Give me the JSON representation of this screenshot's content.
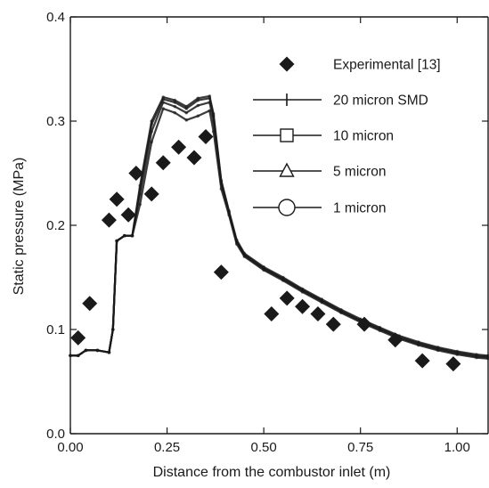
{
  "chart_data": {
    "type": "scatter",
    "title": "",
    "xlabel": "Distance from the combustor inlet (m)",
    "ylabel": "Static pressure (MPa)",
    "xlim": [
      0.0,
      1.08
    ],
    "ylim": [
      0.0,
      0.4
    ],
    "xticks": [
      0.0,
      0.25,
      0.5,
      0.75,
      1.0
    ],
    "xtick_labels": [
      "0.00",
      "0.25",
      "0.50",
      "0.75",
      "1.00"
    ],
    "yticks": [
      0.0,
      0.1,
      0.2,
      0.3,
      0.4
    ],
    "ytick_labels": [
      "0.0",
      "0.1",
      "0.2",
      "0.3",
      "0.4"
    ],
    "grid": false,
    "legend_position": "top-right",
    "series": [
      {
        "name": "Experimental [13]",
        "marker": "diamond",
        "color": "#1a1a1a",
        "points": [
          [
            0.02,
            0.092
          ],
          [
            0.05,
            0.125
          ],
          [
            0.1,
            0.205
          ],
          [
            0.12,
            0.225
          ],
          [
            0.15,
            0.21
          ],
          [
            0.17,
            0.25
          ],
          [
            0.21,
            0.23
          ],
          [
            0.24,
            0.26
          ],
          [
            0.28,
            0.275
          ],
          [
            0.32,
            0.265
          ],
          [
            0.35,
            0.285
          ],
          [
            0.39,
            0.155
          ],
          [
            0.52,
            0.115
          ],
          [
            0.56,
            0.13
          ],
          [
            0.6,
            0.122
          ],
          [
            0.64,
            0.115
          ],
          [
            0.68,
            0.105
          ],
          [
            0.76,
            0.105
          ],
          [
            0.84,
            0.09
          ],
          [
            0.91,
            0.07
          ],
          [
            0.99,
            0.067
          ]
        ]
      },
      {
        "name": "20 micron SMD",
        "marker": "plus",
        "color": "#1a1a1a",
        "points": [
          [
            0.0,
            0.075
          ],
          [
            0.02,
            0.075
          ],
          [
            0.04,
            0.08
          ],
          [
            0.07,
            0.08
          ],
          [
            0.1,
            0.078
          ],
          [
            0.11,
            0.1
          ],
          [
            0.12,
            0.185
          ],
          [
            0.14,
            0.19
          ],
          [
            0.16,
            0.19
          ],
          [
            0.18,
            0.22
          ],
          [
            0.21,
            0.28
          ],
          [
            0.24,
            0.312
          ],
          [
            0.27,
            0.308
          ],
          [
            0.3,
            0.301
          ],
          [
            0.33,
            0.305
          ],
          [
            0.36,
            0.31
          ],
          [
            0.37,
            0.29
          ],
          [
            0.39,
            0.235
          ],
          [
            0.41,
            0.21
          ],
          [
            0.43,
            0.182
          ],
          [
            0.45,
            0.17
          ],
          [
            0.5,
            0.157
          ],
          [
            0.55,
            0.147
          ],
          [
            0.6,
            0.136
          ],
          [
            0.65,
            0.126
          ],
          [
            0.7,
            0.116
          ],
          [
            0.75,
            0.107
          ],
          [
            0.8,
            0.099
          ],
          [
            0.85,
            0.091
          ],
          [
            0.9,
            0.085
          ],
          [
            0.95,
            0.08
          ],
          [
            1.0,
            0.076
          ],
          [
            1.05,
            0.073
          ],
          [
            1.08,
            0.072
          ]
        ]
      },
      {
        "name": "10 micron",
        "marker": "square",
        "color": "#1a1a1a",
        "points": [
          [
            0.0,
            0.075
          ],
          [
            0.02,
            0.075
          ],
          [
            0.04,
            0.08
          ],
          [
            0.07,
            0.08
          ],
          [
            0.1,
            0.078
          ],
          [
            0.11,
            0.1
          ],
          [
            0.12,
            0.185
          ],
          [
            0.14,
            0.19
          ],
          [
            0.16,
            0.19
          ],
          [
            0.18,
            0.23
          ],
          [
            0.21,
            0.29
          ],
          [
            0.24,
            0.318
          ],
          [
            0.27,
            0.314
          ],
          [
            0.3,
            0.308
          ],
          [
            0.33,
            0.315
          ],
          [
            0.36,
            0.318
          ],
          [
            0.37,
            0.3
          ],
          [
            0.39,
            0.24
          ],
          [
            0.41,
            0.212
          ],
          [
            0.43,
            0.184
          ],
          [
            0.45,
            0.171
          ],
          [
            0.5,
            0.158
          ],
          [
            0.55,
            0.148
          ],
          [
            0.6,
            0.137
          ],
          [
            0.65,
            0.127
          ],
          [
            0.7,
            0.117
          ],
          [
            0.75,
            0.108
          ],
          [
            0.8,
            0.1
          ],
          [
            0.85,
            0.092
          ],
          [
            0.9,
            0.086
          ],
          [
            0.95,
            0.081
          ],
          [
            1.0,
            0.077
          ],
          [
            1.05,
            0.074
          ],
          [
            1.08,
            0.073
          ]
        ]
      },
      {
        "name": "5 micron",
        "marker": "triangle",
        "color": "#1a1a1a",
        "points": [
          [
            0.0,
            0.075
          ],
          [
            0.02,
            0.075
          ],
          [
            0.04,
            0.08
          ],
          [
            0.07,
            0.08
          ],
          [
            0.1,
            0.078
          ],
          [
            0.11,
            0.1
          ],
          [
            0.12,
            0.185
          ],
          [
            0.14,
            0.19
          ],
          [
            0.16,
            0.19
          ],
          [
            0.18,
            0.235
          ],
          [
            0.21,
            0.297
          ],
          [
            0.24,
            0.321
          ],
          [
            0.27,
            0.318
          ],
          [
            0.3,
            0.312
          ],
          [
            0.33,
            0.32
          ],
          [
            0.36,
            0.322
          ],
          [
            0.37,
            0.305
          ],
          [
            0.39,
            0.242
          ],
          [
            0.41,
            0.213
          ],
          [
            0.43,
            0.185
          ],
          [
            0.45,
            0.172
          ],
          [
            0.5,
            0.159
          ],
          [
            0.55,
            0.149
          ],
          [
            0.6,
            0.138
          ],
          [
            0.65,
            0.128
          ],
          [
            0.7,
            0.118
          ],
          [
            0.75,
            0.109
          ],
          [
            0.8,
            0.101
          ],
          [
            0.85,
            0.093
          ],
          [
            0.9,
            0.087
          ],
          [
            0.95,
            0.082
          ],
          [
            1.0,
            0.078
          ],
          [
            1.05,
            0.075
          ],
          [
            1.08,
            0.074
          ]
        ]
      },
      {
        "name": "1 micron",
        "marker": "circle",
        "color": "#1a1a1a",
        "points": [
          [
            0.0,
            0.075
          ],
          [
            0.02,
            0.075
          ],
          [
            0.04,
            0.08
          ],
          [
            0.07,
            0.08
          ],
          [
            0.1,
            0.078
          ],
          [
            0.11,
            0.1
          ],
          [
            0.12,
            0.185
          ],
          [
            0.14,
            0.19
          ],
          [
            0.16,
            0.19
          ],
          [
            0.18,
            0.238
          ],
          [
            0.21,
            0.3
          ],
          [
            0.24,
            0.323
          ],
          [
            0.27,
            0.32
          ],
          [
            0.3,
            0.314
          ],
          [
            0.33,
            0.322
          ],
          [
            0.36,
            0.324
          ],
          [
            0.37,
            0.307
          ],
          [
            0.39,
            0.243
          ],
          [
            0.41,
            0.214
          ],
          [
            0.43,
            0.186
          ],
          [
            0.45,
            0.173
          ],
          [
            0.5,
            0.16
          ],
          [
            0.55,
            0.15
          ],
          [
            0.6,
            0.139
          ],
          [
            0.65,
            0.129
          ],
          [
            0.7,
            0.119
          ],
          [
            0.75,
            0.11
          ],
          [
            0.8,
            0.102
          ],
          [
            0.85,
            0.094
          ],
          [
            0.9,
            0.088
          ],
          [
            0.95,
            0.083
          ],
          [
            1.0,
            0.079
          ],
          [
            1.05,
            0.076
          ],
          [
            1.08,
            0.075
          ]
        ]
      }
    ]
  }
}
